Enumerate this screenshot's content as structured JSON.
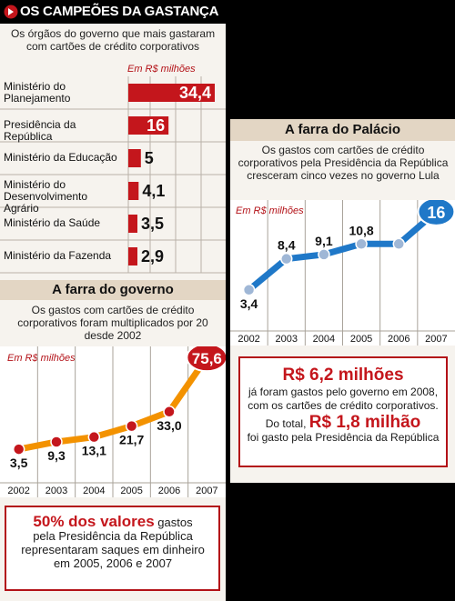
{
  "header": {
    "title": "OS CAMPEÕES DA GASTANÇA"
  },
  "ranking": {
    "subtitle": "Os órgãos do governo que mais gastaram com cartões de crédito corporativos",
    "unit": "Em R$ milhões",
    "items": [
      {
        "label": "Ministério do Planejamento",
        "value": "34,4"
      },
      {
        "label": "Presidência da República",
        "value": "16"
      },
      {
        "label": "Ministério da Educação",
        "value": "5"
      },
      {
        "label": "Ministério do Desenvolvimento Agrário",
        "value": "4,1"
      },
      {
        "label": "Ministério da Saúde",
        "value": "3,5"
      },
      {
        "label": "Ministério da Fazenda",
        "value": "2,9"
      }
    ]
  },
  "governo": {
    "title": "A farra do governo",
    "subtitle": "Os gastos com cartões de crédito corporativos foram multiplicados por 20 desde 2002",
    "unit": "Em R$ milhões",
    "callout": {
      "highlight": "50% dos valores",
      "text1": " gastos",
      "text2": "pela Presidência da República",
      "text3": "representaram saques em dinheiro",
      "text4": "em 2005, 2006 e 2007"
    }
  },
  "palacio": {
    "title": "A farra do Palácio",
    "subtitle": "Os gastos com cartões de crédito corporativos pela Presidência da República cresceram cinco vezes no governo Lula",
    "unit": "Em R$ milhões",
    "callout": {
      "big1": "R$ 6,2 milhões",
      "line1": "já foram gastos  pelo governo em 2008,",
      "line2": "com os cartões de crédito corporativos.",
      "line3": "Do total,",
      "big2": "R$ 1,8 milhão",
      "line4": "foi gasto pela Presidência da República"
    }
  },
  "colors": {
    "red": "#c4161c",
    "orange": "#f39200",
    "blue": "#1f78c8"
  },
  "chart_data": [
    {
      "type": "bar",
      "unit": "Em R$ milhões",
      "categories": [
        "Ministério do Planejamento",
        "Presidência da República",
        "Ministério da Educação",
        "Ministério do Desenvolvimento Agrário",
        "Ministério da Saúde",
        "Ministério da Fazenda"
      ],
      "values": [
        34.4,
        16,
        5,
        4.1,
        3.5,
        2.9
      ],
      "labels": [
        "34,4",
        "16",
        "5",
        "4,1",
        "3,5",
        "2,9"
      ]
    },
    {
      "type": "line",
      "title": "A farra do governo",
      "unit": "Em R$ milhões",
      "x": [
        "2002",
        "2003",
        "2004",
        "2005",
        "2006",
        "2007"
      ],
      "values": [
        3.5,
        9.3,
        13.1,
        21.7,
        33.0,
        75.6
      ],
      "labels": [
        "3,5",
        "9,3",
        "13,1",
        "21,7",
        "33,0",
        "75,6"
      ],
      "ylim": [
        0,
        80
      ]
    },
    {
      "type": "line",
      "title": "A farra do Palácio",
      "unit": "Em R$ milhões",
      "x": [
        "2002",
        "2003",
        "2004",
        "2005",
        "2006",
        "2007"
      ],
      "values": [
        3.4,
        8.4,
        9.1,
        10.8,
        10.8,
        16
      ],
      "labels": [
        "3,4",
        "8,4",
        "9,1",
        "10,8",
        "",
        "16"
      ],
      "ylim": [
        0,
        17
      ]
    }
  ]
}
